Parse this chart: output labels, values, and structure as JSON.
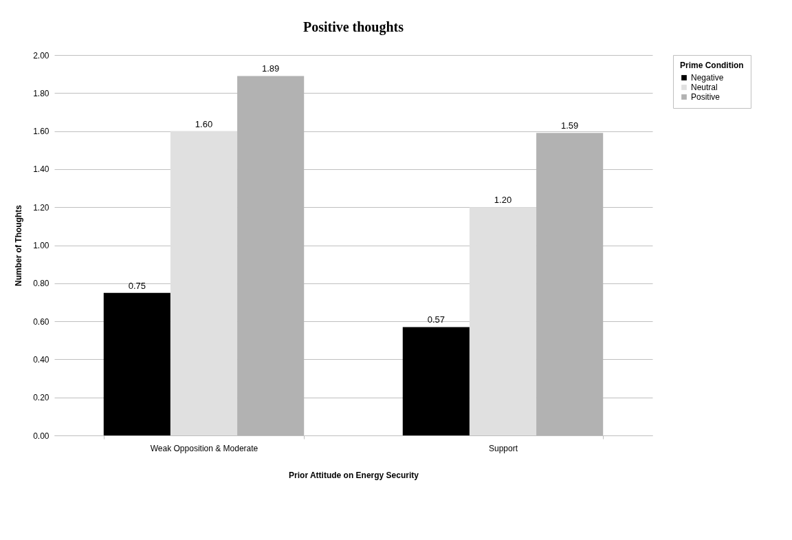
{
  "chart_data": {
    "type": "bar",
    "title": "Positive thoughts",
    "xlabel": "Prior Attitude on Energy Security",
    "ylabel": "Number of Thoughts",
    "legend_title": "Prime Condition",
    "categories": [
      "Weak Opposition & Moderate",
      "Support"
    ],
    "series": [
      {
        "name": "Negative",
        "color": "#000000",
        "values": [
          0.75,
          0.57
        ],
        "value_labels": [
          "0.75",
          "0.57"
        ]
      },
      {
        "name": "Neutral",
        "color": "#e0e0e0",
        "values": [
          1.6,
          1.2
        ],
        "value_labels": [
          "1.60",
          "1.20"
        ]
      },
      {
        "name": "Positive",
        "color": "#b2b2b2",
        "values": [
          1.89,
          1.59
        ],
        "value_labels": [
          "1.89",
          "1.59"
        ]
      }
    ],
    "ylim": [
      0,
      2
    ],
    "yticks": [
      {
        "value": 0,
        "label": "0.00"
      },
      {
        "value": 0.2,
        "label": "0.20"
      },
      {
        "value": 0.4,
        "label": "0.40"
      },
      {
        "value": 0.6,
        "label": "0.60"
      },
      {
        "value": 0.8,
        "label": "0.80"
      },
      {
        "value": 1,
        "label": "1.00"
      },
      {
        "value": 1.2,
        "label": "1.20"
      },
      {
        "value": 1.4,
        "label": "1.40"
      },
      {
        "value": 1.6,
        "label": "1.60"
      },
      {
        "value": 1.8,
        "label": "1.80"
      },
      {
        "value": 2,
        "label": "2.00"
      }
    ],
    "grid": "y",
    "legend": "right"
  }
}
